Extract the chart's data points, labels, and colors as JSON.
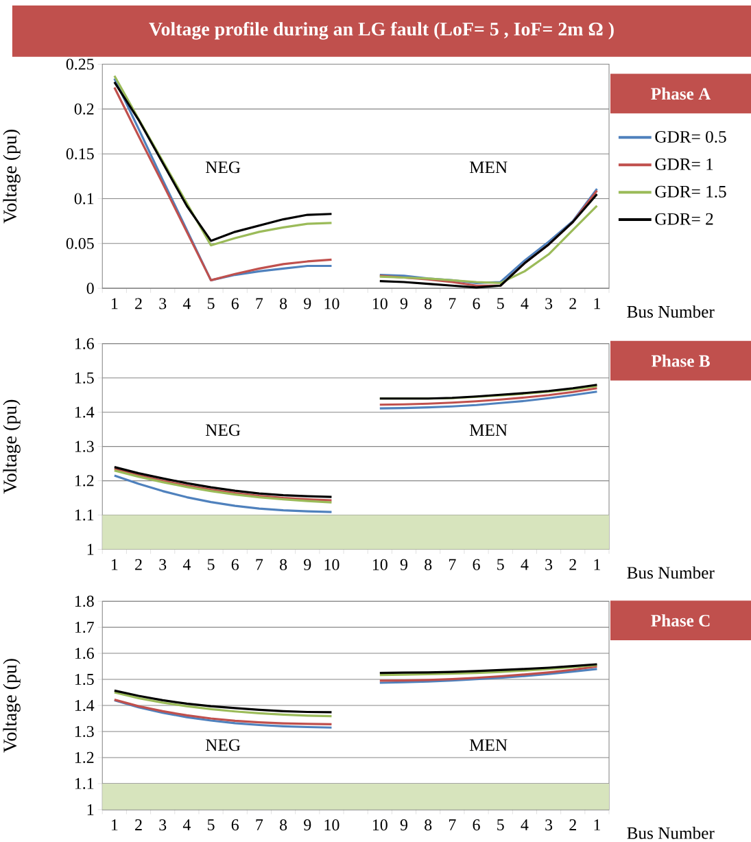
{
  "chart_data": [
    {
      "type": "line",
      "title": "Voltage profile during an LG fault  (LoF= 5  , IoF= 2m Ω )",
      "xlabel": "Bus Number",
      "ylabel": "Voltage (pu)",
      "categories": [
        "1",
        "2",
        "3",
        "4",
        "5",
        "6",
        "7",
        "8",
        "9",
        "10",
        null,
        "10",
        "9",
        "8",
        "7",
        "6",
        "5",
        "4",
        "3",
        "2",
        "1"
      ],
      "ylim": [
        0,
        0.25
      ],
      "yticks": [
        0,
        0.05,
        0.1,
        0.15,
        0.2,
        0.25
      ],
      "grid": "y",
      "legend": "right",
      "annotations": [
        "NEG",
        "MEN",
        "Phase  A"
      ],
      "series": [
        {
          "name": "GDR= 0.5",
          "color": "#4f81bd",
          "values": [
            0.234,
            0.178,
            0.121,
            0.065,
            0.009,
            0.015,
            0.019,
            0.022,
            0.025,
            0.025,
            null,
            0.015,
            0.014,
            0.011,
            0.009,
            0.006,
            0.007,
            0.031,
            0.052,
            0.075,
            0.111
          ]
        },
        {
          "name": "GDR= 1",
          "color": "#c0504d",
          "values": [
            0.224,
            0.17,
            0.117,
            0.063,
            0.009,
            0.016,
            0.022,
            0.027,
            0.03,
            0.032,
            null,
            0.014,
            0.012,
            0.01,
            0.007,
            0.003,
            0.003,
            0.028,
            0.049,
            0.074,
            0.109
          ]
        },
        {
          "name": "GDR= 1.5",
          "color": "#9bbb59",
          "values": [
            0.237,
            0.189,
            0.142,
            0.095,
            0.048,
            0.056,
            0.063,
            0.068,
            0.072,
            0.073,
            null,
            0.013,
            0.012,
            0.011,
            0.009,
            0.007,
            0.006,
            0.019,
            0.038,
            0.065,
            0.092
          ]
        },
        {
          "name": "GDR= 2",
          "color": "#000000",
          "values": [
            0.23,
            0.188,
            0.14,
            0.092,
            0.053,
            0.063,
            0.07,
            0.077,
            0.082,
            0.083,
            null,
            0.008,
            0.007,
            0.005,
            0.003,
            0.001,
            0.003,
            0.028,
            0.049,
            0.074,
            0.105
          ]
        }
      ]
    },
    {
      "type": "line",
      "xlabel": "Bus Number",
      "ylabel": "Voltage (pu)",
      "categories": [
        "1",
        "2",
        "3",
        "4",
        "5",
        "6",
        "7",
        "8",
        "9",
        "10",
        null,
        "10",
        "9",
        "8",
        "7",
        "6",
        "5",
        "4",
        "3",
        "2",
        "1"
      ],
      "ylim": [
        1,
        1.6
      ],
      "yticks": [
        1,
        1.1,
        1.2,
        1.3,
        1.4,
        1.5,
        1.6
      ],
      "grid": "y",
      "annotations": [
        "NEG",
        "MEN",
        "Phase  B"
      ],
      "bands": [
        {
          "axis": "y",
          "from": 1,
          "to": 1.1,
          "color": "#d7e4bd"
        }
      ],
      "series": [
        {
          "color": "#4f81bd",
          "values": [
            1.215,
            1.191,
            1.17,
            1.152,
            1.138,
            1.127,
            1.119,
            1.114,
            1.111,
            1.109,
            null,
            1.411,
            1.412,
            1.414,
            1.417,
            1.421,
            1.427,
            1.433,
            1.441,
            1.45,
            1.46
          ]
        },
        {
          "color": "#c0504d",
          "values": [
            1.235,
            1.216,
            1.2,
            1.186,
            1.174,
            1.164,
            1.156,
            1.15,
            1.146,
            1.143,
            null,
            1.422,
            1.423,
            1.425,
            1.428,
            1.432,
            1.437,
            1.443,
            1.45,
            1.459,
            1.47
          ]
        },
        {
          "color": "#9bbb59",
          "values": [
            1.23,
            1.212,
            1.196,
            1.182,
            1.17,
            1.16,
            1.152,
            1.146,
            1.141,
            1.137,
            null,
            1.44,
            1.44,
            1.44,
            1.441,
            1.445,
            1.449,
            1.454,
            1.46,
            1.467,
            1.476
          ]
        },
        {
          "color": "#000000",
          "values": [
            1.24,
            1.222,
            1.207,
            1.193,
            1.181,
            1.171,
            1.163,
            1.158,
            1.155,
            1.153,
            null,
            1.44,
            1.44,
            1.44,
            1.442,
            1.446,
            1.451,
            1.456,
            1.462,
            1.47,
            1.48
          ]
        }
      ]
    },
    {
      "type": "line",
      "xlabel": "Bus Number",
      "ylabel": "Voltage (pu)",
      "categories": [
        "1",
        "2",
        "3",
        "4",
        "5",
        "6",
        "7",
        "8",
        "9",
        "10",
        null,
        "10",
        "9",
        "8",
        "7",
        "6",
        "5",
        "4",
        "3",
        "2",
        "1"
      ],
      "ylim": [
        1,
        1.8
      ],
      "yticks": [
        1,
        1.1,
        1.2,
        1.3,
        1.4,
        1.5,
        1.6,
        1.7,
        1.8
      ],
      "grid": "y",
      "annotations": [
        "NEG",
        "MEN",
        "Phase  C"
      ],
      "bands": [
        {
          "axis": "y",
          "from": 1,
          "to": 1.1,
          "color": "#d7e4bd"
        }
      ],
      "series": [
        {
          "color": "#4f81bd",
          "values": [
            1.42,
            1.393,
            1.372,
            1.355,
            1.342,
            1.332,
            1.325,
            1.32,
            1.317,
            1.315,
            null,
            1.487,
            1.489,
            1.492,
            1.496,
            1.501,
            1.506,
            1.513,
            1.521,
            1.53,
            1.54
          ]
        },
        {
          "color": "#c0504d",
          "values": [
            1.422,
            1.397,
            1.378,
            1.362,
            1.35,
            1.341,
            1.335,
            1.331,
            1.329,
            1.328,
            null,
            1.495,
            1.496,
            1.498,
            1.501,
            1.506,
            1.512,
            1.519,
            1.527,
            1.537,
            1.55
          ]
        },
        {
          "color": "#9bbb59",
          "values": [
            1.45,
            1.428,
            1.411,
            1.397,
            1.386,
            1.377,
            1.37,
            1.365,
            1.361,
            1.359,
            null,
            1.517,
            1.518,
            1.52,
            1.522,
            1.525,
            1.529,
            1.534,
            1.54,
            1.547,
            1.555
          ]
        },
        {
          "color": "#000000",
          "values": [
            1.457,
            1.437,
            1.42,
            1.407,
            1.397,
            1.39,
            1.383,
            1.378,
            1.375,
            1.374,
            null,
            1.525,
            1.526,
            1.527,
            1.529,
            1.532,
            1.536,
            1.54,
            1.545,
            1.551,
            1.558
          ]
        }
      ]
    }
  ]
}
